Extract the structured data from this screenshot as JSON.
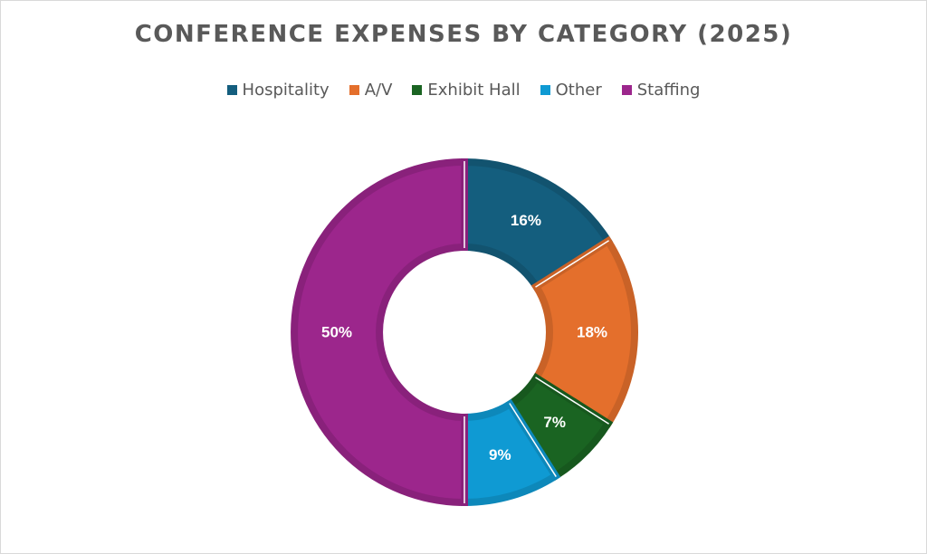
{
  "chart_data": {
    "type": "pie",
    "variant": "donut",
    "title": "CONFERENCE EXPENSES BY CATEGORY (2025)",
    "legend_position": "top",
    "series": [
      {
        "name": "Hospitality",
        "value": 16,
        "label": "16%",
        "color": "#145E7E"
      },
      {
        "name": "A/V",
        "value": 18,
        "label": "18%",
        "color": "#E46F2C"
      },
      {
        "name": "Exhibit Hall",
        "value": 7,
        "label": "7%",
        "color": "#1A6422"
      },
      {
        "name": "Other",
        "value": 9,
        "label": "9%",
        "color": "#0F9AD3"
      },
      {
        "name": "Staffing",
        "value": 50,
        "label": "50%",
        "color": "#9C268C"
      }
    ]
  }
}
